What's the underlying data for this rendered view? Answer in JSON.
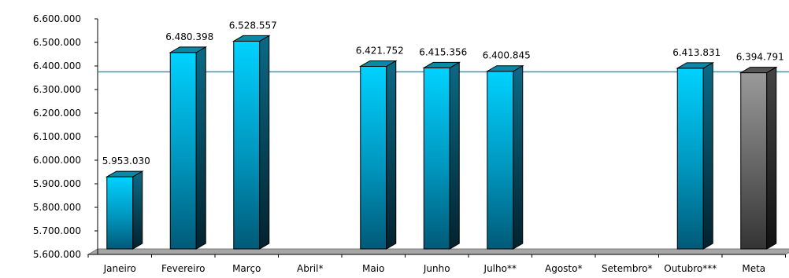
{
  "chart_data": {
    "type": "bar",
    "categories": [
      "Janeiro",
      "Fevereiro",
      "Março",
      "Abril*",
      "Maio",
      "Junho",
      "Julho**",
      "Agosto*",
      "Setembro*",
      "Outubro***",
      "Meta"
    ],
    "values": [
      5953030,
      6480398,
      6528557,
      null,
      6421752,
      6415356,
      6400845,
      null,
      null,
      6413831,
      6394791
    ],
    "value_labels": [
      "5.953.030",
      "6.480.398",
      "6.528.557",
      "",
      "6.421.752",
      "6.415.356",
      "6.400.845",
      "",
      "",
      "6.413.831",
      "6.394.791"
    ],
    "bar_colors": [
      "#00ccff",
      "#00ccff",
      "#00ccff",
      "",
      "#00ccff",
      "#00ccff",
      "#00ccff",
      "",
      "",
      "#00ccff",
      "#808080"
    ],
    "ylim": [
      5600000,
      6600000
    ],
    "yticks": [
      5600000,
      5700000,
      5800000,
      5900000,
      6000000,
      6100000,
      6200000,
      6300000,
      6400000,
      6500000,
      6600000
    ],
    "ytick_labels": [
      "5.600.000",
      "5.700.000",
      "5.800.000",
      "5.900.000",
      "6.000.000",
      "6.100.000",
      "6.200.000",
      "6.300.000",
      "6.400.000",
      "6.500.000",
      "6.600.000"
    ],
    "reference_line": {
      "value": 6375000,
      "color": "#2e9e9e"
    },
    "title": "",
    "xlabel": "",
    "ylabel": "",
    "grid": false,
    "legend": "none"
  }
}
